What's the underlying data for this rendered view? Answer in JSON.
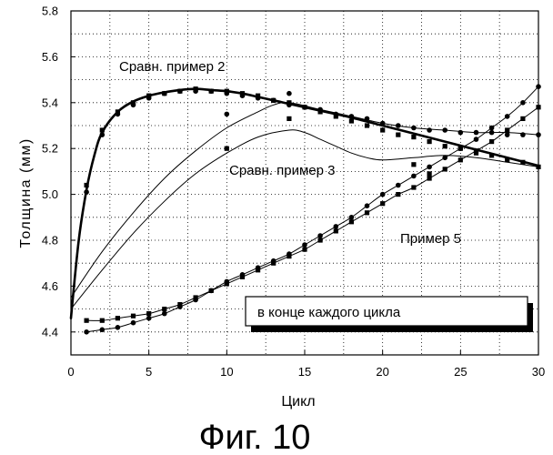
{
  "colors": {
    "ink": "#000000",
    "paper": "#ffffff"
  },
  "chart_data": {
    "type": "scatter",
    "xlabel": "Цикл",
    "ylabel": "Толщина (мм)",
    "caption": "Фиг. 10",
    "legend_note": "в конце каждого цикла",
    "xlim": [
      0,
      30
    ],
    "ylim": [
      4.3,
      5.8
    ],
    "xticks": [
      "0",
      "5",
      "10",
      "15",
      "20",
      "25",
      "30"
    ],
    "yticks": [
      "4.4",
      "4.6",
      "4.8",
      "5.0",
      "5.2",
      "5.4",
      "5.6",
      "5.8"
    ],
    "grid": true,
    "groups": [
      {
        "name": "Сравн. пример 2",
        "fit": [
          [
            0,
            4.46
          ],
          [
            0.5,
            4.8
          ],
          [
            1,
            5.02
          ],
          [
            1.5,
            5.17
          ],
          [
            2,
            5.27
          ],
          [
            3,
            5.36
          ],
          [
            4,
            5.405
          ],
          [
            5,
            5.43
          ],
          [
            6,
            5.445
          ],
          [
            7,
            5.455
          ],
          [
            8,
            5.46
          ],
          [
            9,
            5.455
          ],
          [
            10,
            5.45
          ],
          [
            11,
            5.44
          ],
          [
            12,
            5.425
          ],
          [
            13,
            5.41
          ],
          [
            14,
            5.395
          ],
          [
            16,
            5.365
          ],
          [
            18,
            5.335
          ],
          [
            20,
            5.3
          ],
          [
            22,
            5.265
          ],
          [
            24,
            5.23
          ],
          [
            26,
            5.195
          ],
          [
            28,
            5.16
          ],
          [
            30,
            5.125
          ]
        ],
        "squares": [
          [
            1,
            5.04
          ],
          [
            2,
            5.28
          ],
          [
            3,
            5.36
          ],
          [
            4,
            5.4
          ],
          [
            5,
            5.43
          ],
          [
            6,
            5.44
          ],
          [
            7,
            5.45
          ],
          [
            8,
            5.46
          ],
          [
            9,
            5.45
          ],
          [
            10,
            5.45
          ],
          [
            10,
            5.2
          ],
          [
            11,
            5.44
          ],
          [
            12,
            5.43
          ],
          [
            13,
            5.41
          ],
          [
            14,
            5.4
          ],
          [
            14,
            5.33
          ],
          [
            15,
            5.38
          ],
          [
            16,
            5.36
          ],
          [
            17,
            5.34
          ],
          [
            18,
            5.32
          ],
          [
            19,
            5.3
          ],
          [
            20,
            5.28
          ],
          [
            21,
            5.26
          ],
          [
            22,
            5.25
          ],
          [
            22,
            5.13
          ],
          [
            23,
            5.23
          ],
          [
            23,
            5.09
          ],
          [
            24,
            5.21
          ],
          [
            25,
            5.2
          ],
          [
            26,
            5.18
          ],
          [
            27,
            5.17
          ],
          [
            28,
            5.15
          ],
          [
            29,
            5.14
          ],
          [
            30,
            5.12
          ]
        ],
        "circles": [
          [
            1,
            5.01
          ],
          [
            2,
            5.26
          ],
          [
            3,
            5.35
          ],
          [
            4,
            5.39
          ],
          [
            5,
            5.42
          ],
          [
            6,
            5.44
          ],
          [
            7,
            5.45
          ],
          [
            8,
            5.45
          ],
          [
            9,
            5.45
          ],
          [
            10,
            5.44
          ],
          [
            10,
            5.35
          ],
          [
            11,
            5.43
          ],
          [
            12,
            5.42
          ],
          [
            13,
            5.41
          ],
          [
            14,
            5.39
          ],
          [
            14,
            5.44
          ],
          [
            15,
            5.38
          ],
          [
            16,
            5.37
          ],
          [
            17,
            5.35
          ],
          [
            18,
            5.34
          ],
          [
            19,
            5.33
          ],
          [
            20,
            5.31
          ],
          [
            21,
            5.3
          ],
          [
            22,
            5.29
          ],
          [
            23,
            5.28
          ],
          [
            24,
            5.28
          ],
          [
            25,
            5.27
          ],
          [
            26,
            5.27
          ],
          [
            27,
            5.27
          ],
          [
            28,
            5.26
          ],
          [
            29,
            5.26
          ],
          [
            30,
            5.26
          ]
        ]
      },
      {
        "name": "Сравн. пример 3",
        "lines": [
          [
            [
              0,
              4.55
            ],
            [
              2,
              4.75
            ],
            [
              4,
              4.92
            ],
            [
              6,
              5.07
            ],
            [
              8,
              5.19
            ],
            [
              10,
              5.29
            ],
            [
              12,
              5.36
            ],
            [
              13,
              5.39
            ],
            [
              14,
              5.4
            ],
            [
              16,
              5.37
            ],
            [
              18,
              5.34
            ],
            [
              20,
              5.31
            ],
            [
              22,
              5.29
            ],
            [
              24,
              5.28
            ],
            [
              26,
              5.27
            ],
            [
              28,
              5.27
            ],
            [
              30,
              5.26
            ]
          ],
          [
            [
              0,
              4.5
            ],
            [
              2,
              4.67
            ],
            [
              4,
              4.83
            ],
            [
              6,
              4.97
            ],
            [
              8,
              5.09
            ],
            [
              10,
              5.18
            ],
            [
              12,
              5.25
            ],
            [
              14,
              5.28
            ],
            [
              15,
              5.27
            ],
            [
              16,
              5.24
            ],
            [
              17,
              5.21
            ],
            [
              18,
              5.18
            ],
            [
              19,
              5.16
            ],
            [
              20,
              5.15
            ],
            [
              22,
              5.16
            ],
            [
              24,
              5.17
            ],
            [
              26,
              5.16
            ],
            [
              28,
              5.14
            ],
            [
              30,
              5.12
            ]
          ]
        ]
      },
      {
        "name": "Пример 5",
        "circles": [
          [
            1,
            4.4
          ],
          [
            2,
            4.41
          ],
          [
            3,
            4.42
          ],
          [
            4,
            4.44
          ],
          [
            5,
            4.46
          ],
          [
            6,
            4.48
          ],
          [
            7,
            4.51
          ],
          [
            8,
            4.54
          ],
          [
            9,
            4.58
          ],
          [
            10,
            4.62
          ],
          [
            11,
            4.65
          ],
          [
            12,
            4.68
          ],
          [
            13,
            4.71
          ],
          [
            14,
            4.74
          ],
          [
            15,
            4.78
          ],
          [
            16,
            4.82
          ],
          [
            17,
            4.86
          ],
          [
            18,
            4.9
          ],
          [
            19,
            4.95
          ],
          [
            20,
            5.0
          ],
          [
            21,
            5.04
          ],
          [
            22,
            5.08
          ],
          [
            23,
            5.12
          ],
          [
            24,
            5.16
          ],
          [
            25,
            5.2
          ],
          [
            26,
            5.24
          ],
          [
            27,
            5.29
          ],
          [
            28,
            5.34
          ],
          [
            29,
            5.4
          ],
          [
            30,
            5.47
          ]
        ],
        "squares": [
          [
            1,
            4.45
          ],
          [
            2,
            4.45
          ],
          [
            3,
            4.46
          ],
          [
            4,
            4.47
          ],
          [
            5,
            4.48
          ],
          [
            6,
            4.5
          ],
          [
            7,
            4.52
          ],
          [
            8,
            4.55
          ],
          [
            9,
            4.58
          ],
          [
            10,
            4.61
          ],
          [
            11,
            4.64
          ],
          [
            12,
            4.67
          ],
          [
            13,
            4.7
          ],
          [
            14,
            4.73
          ],
          [
            15,
            4.76
          ],
          [
            16,
            4.8
          ],
          [
            17,
            4.84
          ],
          [
            18,
            4.88
          ],
          [
            19,
            4.92
          ],
          [
            20,
            4.96
          ],
          [
            21,
            5.0
          ],
          [
            22,
            5.03
          ],
          [
            23,
            5.07
          ],
          [
            24,
            5.11
          ],
          [
            25,
            5.15
          ],
          [
            26,
            5.19
          ],
          [
            27,
            5.23
          ],
          [
            28,
            5.28
          ],
          [
            29,
            5.33
          ],
          [
            30,
            5.38
          ]
        ]
      }
    ]
  }
}
